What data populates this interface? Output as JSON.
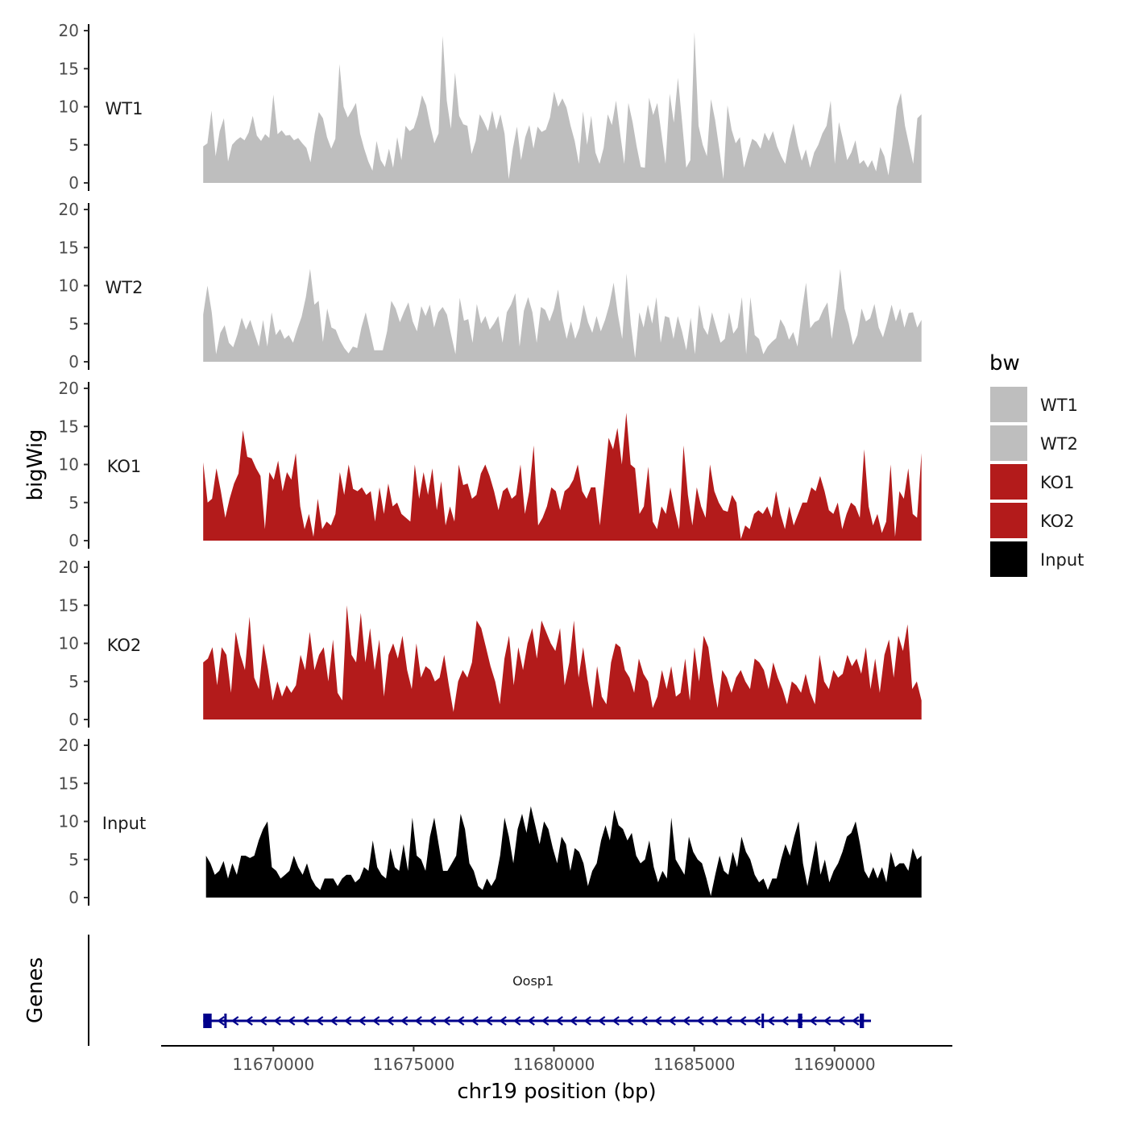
{
  "chart_data": {
    "type": "area",
    "x_axis": {
      "label": "chr19 position (bp)",
      "range": [
        11666000,
        11694200
      ],
      "ticks": [
        11670000,
        11675000,
        11680000,
        11685000,
        11690000
      ],
      "tick_labels": [
        "11670000",
        "11675000",
        "11680000",
        "11685000",
        "11690000"
      ]
    },
    "y_axis": {
      "label": "bigWig",
      "range": [
        0,
        20
      ],
      "ticks": [
        0,
        5,
        10,
        15,
        20
      ],
      "tick_labels": [
        "0",
        "5",
        "10",
        "15",
        "20"
      ]
    },
    "tracks": [
      {
        "name": "WT1",
        "color": "#bebebe",
        "x_start": 11667500,
        "x_end": 11693100,
        "values": [
          4.8,
          5.2,
          9.5,
          3.5,
          6.8,
          8.5,
          2.8,
          5.0,
          5.6,
          6.0,
          5.6,
          6.6,
          8.8,
          6.2,
          5.5,
          6.4,
          5.9,
          11.6,
          6.4,
          6.9,
          6.2,
          6.3,
          5.6,
          5.9,
          5.2,
          4.6,
          2.7,
          6.5,
          9.3,
          8.5,
          6.0,
          4.5,
          5.8,
          15.6,
          10.0,
          8.6,
          9.5,
          10.5,
          6.5,
          4.5,
          2.8,
          1.6,
          5.5,
          3.0,
          2.1,
          4.5,
          2.0,
          6.0,
          3.0,
          7.5,
          6.8,
          7.2,
          8.9,
          11.5,
          10.2,
          7.5,
          5.2,
          6.5,
          19.3,
          10.8,
          7.1,
          14.5,
          8.8,
          7.7,
          7.5,
          3.8,
          5.5,
          9.0,
          8.0,
          6.8,
          9.5,
          7.0,
          9.0,
          6.5,
          0.5,
          4.5,
          7.4,
          3.0,
          6.0,
          7.6,
          4.5,
          7.4,
          6.7,
          7.0,
          8.6,
          12.0,
          10.0,
          11.1,
          9.9,
          7.5,
          5.5,
          2.5,
          9.4,
          5.0,
          8.8,
          4.0,
          2.5,
          4.6,
          9.0,
          7.6,
          10.8,
          6.5,
          2.5,
          10.5,
          8.0,
          4.8,
          2.1,
          2.0,
          11.2,
          8.9,
          10.5,
          6.5,
          2.5,
          11.7,
          7.9,
          13.8,
          8.1,
          2.0,
          3.0,
          19.8,
          7.5,
          5.0,
          3.5,
          11.0,
          8.3,
          4.5,
          0.5,
          10.2,
          7.0,
          5.2,
          6.0,
          2.0,
          4.0,
          5.8,
          5.4,
          4.5,
          6.6,
          5.5,
          6.8,
          4.8,
          3.5,
          2.5,
          5.6,
          7.8,
          5.0,
          2.9,
          4.4,
          2.0,
          4.0,
          5.0,
          6.5,
          7.5,
          10.8,
          2.5,
          8.0,
          5.6,
          3.0,
          4.0,
          5.6,
          2.5,
          3.0,
          2.0,
          3.0,
          1.5,
          4.7,
          3.5,
          1.0,
          5.0,
          10.0,
          11.8,
          7.5,
          5.0,
          2.5,
          8.5,
          9.0
        ]
      },
      {
        "name": "WT2",
        "color": "#bebebe",
        "x_start": 11667500,
        "x_end": 11693100,
        "values": [
          6.2,
          10.0,
          6.5,
          1.0,
          3.8,
          4.8,
          2.5,
          1.9,
          3.6,
          5.8,
          4.2,
          5.5,
          3.7,
          2.0,
          5.5,
          2.0,
          6.5,
          3.5,
          4.3,
          3.0,
          3.5,
          2.5,
          4.3,
          5.9,
          8.5,
          12.2,
          7.5,
          8.0,
          2.6,
          7.0,
          4.5,
          4.2,
          2.8,
          1.8,
          1.1,
          2.0,
          1.8,
          4.5,
          6.5,
          4.0,
          1.5,
          1.5,
          1.5,
          4.0,
          8.0,
          7.0,
          5.2,
          6.6,
          7.8,
          5.3,
          4.0,
          7.3,
          6.0,
          7.5,
          4.5,
          6.5,
          7.2,
          6.2,
          3.5,
          1.0,
          8.4,
          5.4,
          5.6,
          2.5,
          7.6,
          5.0,
          6.0,
          4.2,
          5.0,
          6.0,
          2.5,
          6.5,
          7.5,
          9.0,
          2.0,
          6.7,
          8.5,
          6.5,
          2.5,
          7.2,
          6.8,
          5.3,
          6.9,
          9.5,
          5.5,
          3.0,
          5.3,
          3.0,
          4.5,
          7.5,
          5.2,
          3.8,
          6.0,
          4.0,
          5.5,
          7.5,
          10.4,
          6.2,
          3.0,
          11.6,
          5.0,
          0.5,
          6.5,
          4.5,
          7.5,
          5.0,
          8.5,
          2.5,
          6.0,
          5.8,
          3.0,
          6.0,
          4.0,
          1.5,
          5.8,
          1.0,
          7.5,
          4.5,
          3.5,
          6.5,
          4.5,
          2.5,
          3.0,
          6.5,
          3.7,
          4.5,
          8.5,
          1.0,
          8.5,
          3.5,
          3.0,
          1.0,
          2.0,
          2.6,
          3.1,
          5.6,
          4.6,
          2.9,
          3.9,
          2.0,
          6.6,
          10.4,
          4.4,
          5.2,
          5.5,
          6.8,
          7.8,
          3.0,
          7.0,
          12.2,
          7.0,
          5.0,
          2.2,
          3.5,
          7.0,
          5.3,
          5.7,
          7.6,
          4.5,
          3.2,
          5.2,
          7.5,
          5.3,
          7.0,
          4.5,
          6.4,
          6.5,
          4.5,
          5.5
        ]
      },
      {
        "name": "KO1",
        "color": "#b31b1b",
        "x_start": 11667500,
        "x_end": 11693100,
        "values": [
          10.3,
          5.0,
          5.5,
          9.5,
          6.5,
          3.0,
          5.5,
          7.5,
          8.8,
          14.5,
          11.0,
          10.8,
          9.5,
          8.5,
          1.5,
          9.0,
          8.0,
          10.5,
          6.5,
          9.0,
          8.0,
          11.5,
          4.5,
          1.5,
          3.5,
          0.5,
          5.5,
          1.5,
          2.5,
          2.0,
          3.5,
          9.0,
          6.0,
          10.0,
          6.8,
          6.5,
          7.0,
          6.0,
          6.5,
          2.5,
          7.0,
          3.5,
          7.5,
          4.5,
          5.0,
          3.5,
          3.0,
          2.5,
          10.0,
          5.5,
          9.0,
          6.0,
          9.5,
          4.0,
          7.8,
          2.0,
          4.5,
          2.5,
          10.0,
          7.3,
          7.5,
          5.5,
          6.0,
          8.8,
          10.0,
          8.5,
          6.5,
          4.0,
          6.5,
          7.0,
          5.5,
          6.0,
          10.0,
          3.5,
          6.5,
          12.5,
          2.0,
          3.0,
          4.5,
          7.0,
          6.5,
          4.0,
          6.5,
          7.0,
          8.0,
          10.0,
          6.5,
          5.5,
          7.0,
          7.0,
          2.0,
          7.5,
          13.5,
          12.0,
          14.8,
          10.0,
          16.8,
          10.0,
          9.5,
          3.5,
          4.5,
          9.7,
          2.5,
          1.5,
          4.5,
          3.5,
          7.0,
          4.0,
          1.5,
          12.5,
          6.0,
          2.0,
          7.0,
          4.5,
          3.0,
          10.0,
          6.5,
          5.0,
          4.0,
          3.8,
          6.0,
          5.0,
          0.2,
          2.0,
          1.5,
          3.5,
          4.0,
          3.5,
          4.5,
          3.0,
          6.5,
          3.5,
          1.5,
          4.5,
          2.0,
          3.5,
          5.0,
          5.0,
          7.0,
          6.5,
          8.5,
          6.5,
          4.0,
          3.5,
          5.0,
          1.5,
          3.5,
          5.0,
          4.5,
          3.0,
          12.0,
          4.5,
          2.0,
          3.5,
          1.0,
          2.5,
          10.0,
          0.5,
          6.5,
          5.5,
          9.5,
          3.5,
          3.0,
          11.5
        ]
      },
      {
        "name": "KO2",
        "color": "#b31b1b",
        "x_start": 11667500,
        "x_end": 11693100,
        "values": [
          7.5,
          8.0,
          9.5,
          4.5,
          9.5,
          8.5,
          3.5,
          11.5,
          8.5,
          6.5,
          13.5,
          5.5,
          4.0,
          10.0,
          6.5,
          2.5,
          5.0,
          3.0,
          4.5,
          3.5,
          4.5,
          8.5,
          6.5,
          11.5,
          6.5,
          8.5,
          9.5,
          5.0,
          10.5,
          3.5,
          2.5,
          15.0,
          8.5,
          7.5,
          14.0,
          7.5,
          12.0,
          6.5,
          10.5,
          3.0,
          8.5,
          10.0,
          8.0,
          11.0,
          6.5,
          4.0,
          10.0,
          5.5,
          7.0,
          6.5,
          5.0,
          5.5,
          8.5,
          4.5,
          1.0,
          5.0,
          6.5,
          5.5,
          7.5,
          13.0,
          12.0,
          9.5,
          7.0,
          5.0,
          2.0,
          8.0,
          11.0,
          4.5,
          9.5,
          6.5,
          10.0,
          12.0,
          8.0,
          13.0,
          11.5,
          10.0,
          9.0,
          12.0,
          4.5,
          7.5,
          13.0,
          5.5,
          9.5,
          5.0,
          1.5,
          7.0,
          3.0,
          2.0,
          7.5,
          10.0,
          9.5,
          6.5,
          5.5,
          3.5,
          8.0,
          6.0,
          5.0,
          1.5,
          3.0,
          6.5,
          4.0,
          7.0,
          3.0,
          3.5,
          8.0,
          2.5,
          9.5,
          5.0,
          11.0,
          9.5,
          5.0,
          1.5,
          6.5,
          5.5,
          3.5,
          5.5,
          6.5,
          5.0,
          4.0,
          8.0,
          7.5,
          6.5,
          4.0,
          7.5,
          5.5,
          4.0,
          2.0,
          5.0,
          4.5,
          3.5,
          6.0,
          3.5,
          2.0,
          8.5,
          5.0,
          4.0,
          6.5,
          5.5,
          6.0,
          8.5,
          7.0,
          8.0,
          6.0,
          9.5,
          4.0,
          8.0,
          3.5,
          8.5,
          10.5,
          5.5,
          11.0,
          9.0,
          12.5,
          4.0,
          5.0,
          2.5
        ]
      },
      {
        "name": "Input",
        "color": "#000000",
        "x_start": 11667600,
        "x_end": 11693100,
        "values": [
          5.5,
          4.5,
          3.0,
          3.5,
          4.8,
          2.5,
          4.5,
          3.0,
          5.5,
          5.5,
          5.2,
          5.5,
          7.5,
          9.0,
          10.0,
          4.0,
          3.5,
          2.5,
          3.0,
          3.5,
          5.5,
          4.0,
          3.0,
          4.5,
          2.5,
          1.5,
          1.0,
          2.5,
          2.5,
          2.5,
          1.5,
          2.5,
          3.0,
          3.0,
          2.0,
          2.5,
          4.0,
          3.5,
          7.5,
          4.0,
          3.0,
          2.5,
          6.5,
          4.0,
          3.5,
          7.0,
          3.5,
          10.5,
          5.5,
          5.0,
          3.5,
          8.0,
          10.5,
          7.0,
          3.5,
          3.5,
          4.5,
          5.5,
          11.0,
          9.0,
          4.5,
          3.5,
          1.5,
          1.0,
          2.5,
          1.5,
          2.5,
          5.5,
          10.5,
          8.0,
          4.5,
          9.0,
          11.0,
          8.5,
          12.0,
          9.5,
          7.0,
          10.0,
          9.0,
          6.5,
          4.5,
          8.0,
          7.0,
          3.5,
          6.5,
          6.0,
          4.5,
          1.5,
          3.5,
          4.5,
          7.5,
          9.5,
          7.5,
          11.5,
          9.5,
          9.0,
          7.5,
          8.5,
          5.5,
          4.5,
          5.0,
          7.5,
          4.0,
          2.0,
          3.5,
          2.5,
          10.5,
          5.0,
          4.0,
          3.0,
          8.0,
          6.0,
          5.0,
          4.5,
          2.5,
          0.2,
          3.0,
          5.5,
          3.5,
          3.0,
          6.0,
          4.0,
          8.0,
          6.0,
          5.0,
          3.0,
          2.0,
          2.5,
          1.0,
          2.5,
          2.5,
          5.0,
          7.0,
          5.5,
          8.0,
          10.0,
          4.5,
          1.5,
          4.5,
          7.5,
          3.0,
          5.0,
          2.0,
          3.5,
          4.5,
          6.0,
          8.0,
          8.5,
          10.0,
          7.0,
          3.5,
          2.5,
          4.0,
          2.5,
          4.0,
          2.0,
          6.0,
          4.0,
          4.5,
          4.5,
          3.5,
          6.5,
          5.0,
          5.5
        ]
      }
    ],
    "legend": {
      "title": "bw",
      "position": "right",
      "entries": [
        {
          "label": "WT1",
          "color": "#bebebe"
        },
        {
          "label": "WT2",
          "color": "#bebebe"
        },
        {
          "label": "KO1",
          "color": "#b31b1b"
        },
        {
          "label": "KO2",
          "color": "#b31b1b"
        },
        {
          "label": "Input",
          "color": "#000000"
        }
      ]
    },
    "gene_track": {
      "label": "Genes",
      "strand": "-",
      "color": "#00008b",
      "genes": [
        {
          "name": "Oosp1",
          "start": 11667500,
          "end": 11691300,
          "exons": [
            [
              11667500,
              11667800
            ],
            [
              11668250,
              11668330
            ],
            [
              11687400,
              11687450
            ],
            [
              11688700,
              11688850
            ],
            [
              11690900,
              11691050
            ]
          ]
        }
      ]
    }
  }
}
